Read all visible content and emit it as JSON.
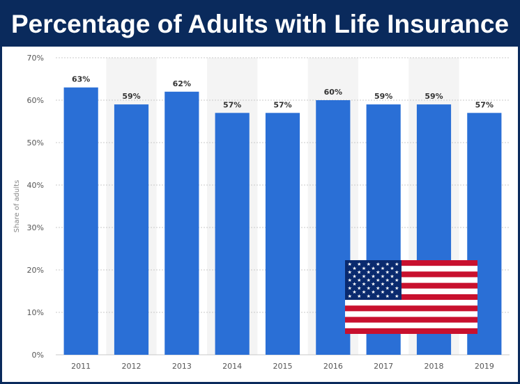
{
  "chart_data": {
    "type": "bar",
    "title": "Percentage of Adults with Life Insurance",
    "xlabel": "",
    "ylabel": "Share of adults",
    "categories": [
      "2011",
      "2012",
      "2013",
      "2014",
      "2015",
      "2016",
      "2017",
      "2018",
      "2019"
    ],
    "values": [
      63,
      59,
      62,
      57,
      57,
      60,
      59,
      59,
      57
    ],
    "data_labels": [
      "63%",
      "59%",
      "62%",
      "57%",
      "57%",
      "60%",
      "59%",
      "59%",
      "57%"
    ],
    "ylim": [
      0,
      70
    ],
    "yticks": [
      0,
      10,
      20,
      30,
      40,
      50,
      60,
      70
    ],
    "ytick_labels": [
      "0%",
      "10%",
      "20%",
      "30%",
      "40%",
      "50%",
      "60%",
      "70%"
    ],
    "grid": true,
    "legend": "none"
  },
  "colors": {
    "bar": "#2a6fd6",
    "title_bg": "#0a2a5c",
    "title_text": "#ffffff",
    "grid": "#c8c8c8",
    "alt_band": "#f4f4f4",
    "axis_text": "#555555",
    "label_text": "#333333",
    "flag_red": "#c8102e",
    "flag_blue": "#0a2a6e",
    "flag_white": "#ffffff"
  },
  "decorations": {
    "flag_icon": "us-flag-icon"
  }
}
